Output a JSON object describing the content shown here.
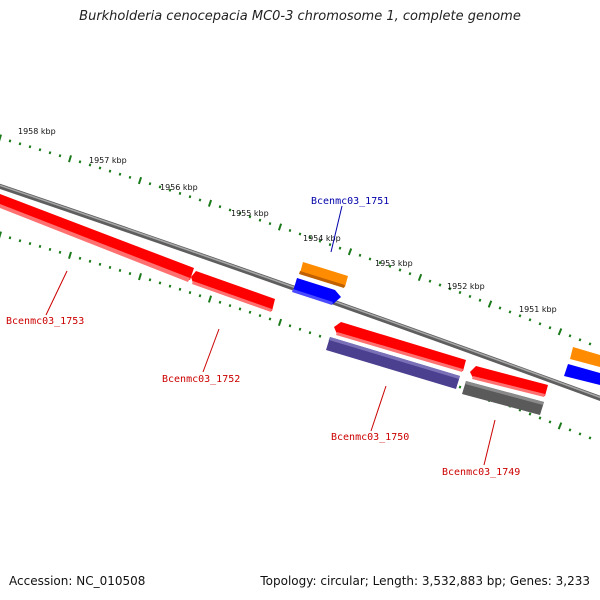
{
  "title": "Burkholderia cenocepacia MC0-3 chromosome 1, complete genome",
  "footer": {
    "accession": "Accession: NC_010508",
    "summary": "Topology: circular; Length: 3,532,883 bp; Genes: 3,233"
  },
  "colors": {
    "backbone": "#808080",
    "tick": "#1a7a1a",
    "gene_forward": "#ff0000",
    "gene_orange": "#ff8c00",
    "gene_blue": "#0000ff",
    "gene_purple": "#4b3f8f",
    "gene_gray": "#5a5a5a",
    "label_red": "#cc0000",
    "label_blue": "#0000aa"
  },
  "scale_labels": [
    "1958 kbp",
    "1957 kbp",
    "1956 kbp",
    "1955 kbp",
    "1954 kbp",
    "1953 kbp",
    "1952 kbp",
    "1951 kbp"
  ],
  "gene_labels": {
    "g1751": "Bcenmc03_1751",
    "g1753": "Bcenmc03_1753",
    "g1752": "Bcenmc03_1752",
    "g1750": "Bcenmc03_1750",
    "g1749": "Bcenmc03_1749"
  }
}
